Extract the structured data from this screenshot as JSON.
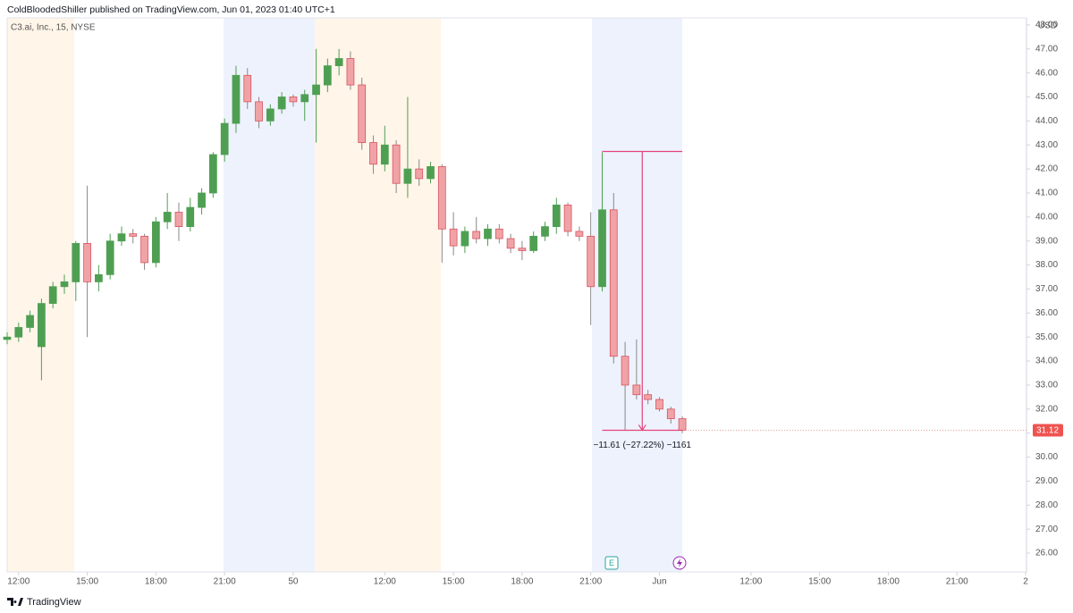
{
  "header": {
    "title": "ColdBloodedShiller published on TradingView.com, Jun 01, 2023 01:40 UTC+1"
  },
  "footer": {
    "brand": "TradingView"
  },
  "chart_data": {
    "type": "candlestick",
    "subtitle": "C3.ai, Inc., 15, NYSE",
    "y_axis_label": "USD",
    "up_color": "#4f9f53",
    "down_color": "#f0a3a6",
    "down_border": "#d9535f",
    "x": [
      0,
      2,
      4,
      6,
      8,
      10,
      12,
      14,
      16,
      18,
      20,
      22,
      24,
      26,
      28,
      30,
      32,
      34,
      36,
      38,
      40,
      42,
      44,
      46,
      48,
      50,
      52,
      54,
      56,
      58,
      60,
      62,
      64,
      66,
      68,
      70,
      72,
      74,
      76,
      78,
      80,
      82,
      84,
      86,
      88,
      90,
      92,
      94,
      96,
      98,
      100,
      102,
      104,
      106,
      108,
      110,
      112,
      114,
      116,
      118
    ],
    "open": [
      34.9,
      35.0,
      35.4,
      34.6,
      36.4,
      37.1,
      37.3,
      38.9,
      37.3,
      37.6,
      39.0,
      39.3,
      39.2,
      38.1,
      39.8,
      40.2,
      39.6,
      40.4,
      41.0,
      42.6,
      43.9,
      45.9,
      44.8,
      44.0,
      44.5,
      45.0,
      44.8,
      45.1,
      45.5,
      46.3,
      46.6,
      45.5,
      43.1,
      42.2,
      43.0,
      41.4,
      42.0,
      41.6,
      42.1,
      39.5,
      38.8,
      39.4,
      39.1,
      39.5,
      39.1,
      38.7,
      38.6,
      39.2,
      39.6,
      40.5,
      39.4,
      39.2,
      37.1,
      40.3,
      34.2,
      33.0,
      32.6,
      32.4,
      32.0,
      31.6
    ],
    "high": [
      35.2,
      35.6,
      36.1,
      36.6,
      37.3,
      37.6,
      39.0,
      41.3,
      38.0,
      39.3,
      39.6,
      39.5,
      39.3,
      40.0,
      41.0,
      40.6,
      40.8,
      41.2,
      42.7,
      44.1,
      46.3,
      46.2,
      45.0,
      44.7,
      45.2,
      45.1,
      45.3,
      47.0,
      46.6,
      47.0,
      46.9,
      45.8,
      43.4,
      43.8,
      43.2,
      45.0,
      42.4,
      42.3,
      42.2,
      40.2,
      39.6,
      40.0,
      39.7,
      39.7,
      39.3,
      39.0,
      39.4,
      39.8,
      40.8,
      40.6,
      39.6,
      40.2,
      42.7,
      41.0,
      34.8,
      34.9,
      32.8,
      32.5,
      32.1,
      31.7
    ],
    "low": [
      34.7,
      34.8,
      35.2,
      33.2,
      36.2,
      36.8,
      36.5,
      35.0,
      36.9,
      37.4,
      38.8,
      38.9,
      37.8,
      37.9,
      39.5,
      39.0,
      39.4,
      40.1,
      40.8,
      42.3,
      43.5,
      44.5,
      43.7,
      43.8,
      44.3,
      44.6,
      44.0,
      43.1,
      45.2,
      45.9,
      45.3,
      42.8,
      41.8,
      41.9,
      41.0,
      40.8,
      41.3,
      41.4,
      38.1,
      38.4,
      38.5,
      38.9,
      38.8,
      38.9,
      38.5,
      38.2,
      38.5,
      39.0,
      39.3,
      39.2,
      39.0,
      35.5,
      36.9,
      33.9,
      31.1,
      32.4,
      32.2,
      31.9,
      31.4,
      31.0
    ],
    "close": [
      35.0,
      35.4,
      35.9,
      36.4,
      37.1,
      37.3,
      38.9,
      37.3,
      37.6,
      39.0,
      39.3,
      39.2,
      38.1,
      39.8,
      40.2,
      39.6,
      40.4,
      41.0,
      42.6,
      43.9,
      45.9,
      44.8,
      44.0,
      44.5,
      45.0,
      44.8,
      45.1,
      45.5,
      46.3,
      46.6,
      45.5,
      43.1,
      42.2,
      43.0,
      41.4,
      42.0,
      41.6,
      42.1,
      39.5,
      38.8,
      39.4,
      39.1,
      39.5,
      39.1,
      38.7,
      38.6,
      39.2,
      39.6,
      40.5,
      39.4,
      39.2,
      37.1,
      40.3,
      34.2,
      33.0,
      32.6,
      32.4,
      32.0,
      31.6,
      31.12
    ],
    "last_price": 31.12,
    "measure": {
      "from": 42.73,
      "to": 31.12,
      "x_from": 104,
      "x_to": 118,
      "label": "−11.61 (−27.22%) −1161"
    },
    "xlim": [
      0,
      178
    ],
    "xticks": [
      {
        "value": 2,
        "label": "12:00"
      },
      {
        "value": 14,
        "label": "15:00"
      },
      {
        "value": 26,
        "label": "18:00"
      },
      {
        "value": 38,
        "label": "21:00"
      },
      50,
      {
        "value": 66,
        "label": "12:00"
      },
      {
        "value": 78,
        "label": "15:00"
      },
      {
        "value": 90,
        "label": "18:00"
      },
      {
        "value": 102,
        "label": "21:00"
      },
      {
        "value": 114,
        "label": "Jun"
      },
      {
        "value": 130,
        "label": "12:00"
      },
      {
        "value": 142,
        "label": "15:00"
      },
      {
        "value": 154,
        "label": "18:00"
      },
      {
        "value": 166,
        "label": "21:00"
      },
      {
        "value": 178,
        "label": "2"
      }
    ],
    "ylim": [
      25.22,
      48.74
    ],
    "yticks": [
      {
        "value": 26,
        "label": "26.00"
      },
      {
        "value": 27,
        "label": "27.00"
      },
      {
        "value": 28,
        "label": "28.00"
      },
      {
        "value": 29,
        "label": "29.00"
      },
      {
        "value": 30,
        "label": "30.00"
      },
      {
        "value": 31,
        "label": "31.00"
      },
      {
        "value": 32,
        "label": "32.00"
      },
      {
        "value": 33,
        "label": "33.00"
      },
      {
        "value": 34,
        "label": "34.00"
      },
      {
        "value": 35,
        "label": "35.00"
      },
      {
        "value": 36,
        "label": "36.00"
      },
      {
        "value": 37,
        "label": "37.00"
      },
      {
        "value": 38,
        "label": "38.00"
      },
      {
        "value": 39,
        "label": "39.00"
      },
      {
        "value": 40,
        "label": "40.00"
      },
      {
        "value": 41,
        "label": "41.00"
      },
      {
        "value": 42,
        "label": "42.00"
      },
      {
        "value": 43,
        "label": "43.00"
      },
      {
        "value": 44,
        "label": "44.00"
      },
      {
        "value": 45,
        "label": "45.00"
      },
      {
        "value": 46,
        "label": "46.00"
      },
      {
        "value": 47,
        "label": "47.00"
      },
      {
        "value": 48,
        "label": "48.00"
      }
    ]
  }
}
